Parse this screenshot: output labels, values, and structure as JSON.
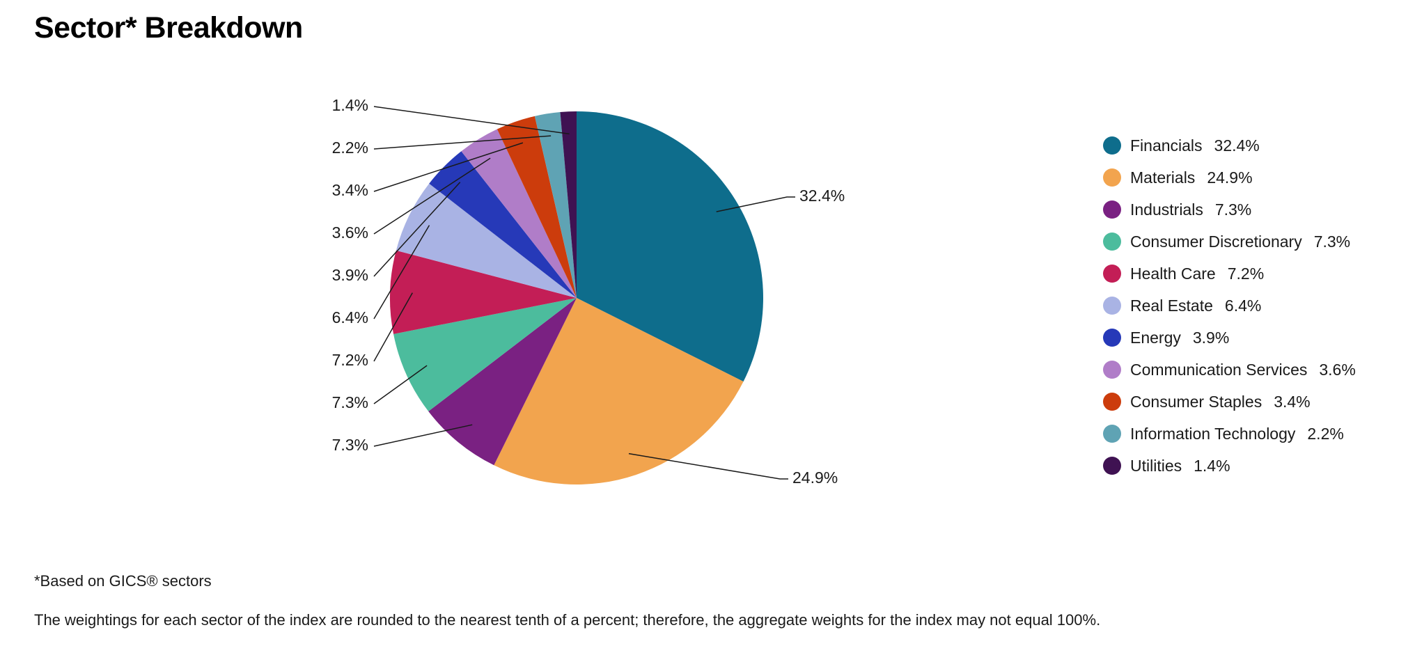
{
  "title": "Sector* Breakdown",
  "footnotes": {
    "gics": "*Based on GICS® sectors",
    "rounding": "The weightings for each sector of the index are rounded to the nearest tenth of a percent; therefore, the aggregate weights for the index may not equal 100%."
  },
  "chart_data": {
    "type": "pie",
    "title": "Sector* Breakdown",
    "legend_position": "right",
    "value_suffix": "%",
    "start_angle": "12 o'clock, clockwise",
    "series": [
      {
        "name": "Financials",
        "value": 32.4,
        "color": "#0e6d8c"
      },
      {
        "name": "Materials",
        "value": 24.9,
        "color": "#f2a44e"
      },
      {
        "name": "Industrials",
        "value": 7.3,
        "color": "#7a2182"
      },
      {
        "name": "Consumer Discretionary",
        "value": 7.3,
        "color": "#4cbc9d"
      },
      {
        "name": "Health Care",
        "value": 7.2,
        "color": "#c31e56"
      },
      {
        "name": "Real Estate",
        "value": 6.4,
        "color": "#a9b3e4"
      },
      {
        "name": "Energy",
        "value": 3.9,
        "color": "#2639b8"
      },
      {
        "name": "Communication Services",
        "value": 3.6,
        "color": "#b07dc8"
      },
      {
        "name": "Consumer Staples",
        "value": 3.4,
        "color": "#cc3c0c"
      },
      {
        "name": "Information Technology",
        "value": 2.2,
        "color": "#5fa3b4"
      },
      {
        "name": "Utilities",
        "value": 1.4,
        "color": "#3f1252"
      }
    ]
  }
}
